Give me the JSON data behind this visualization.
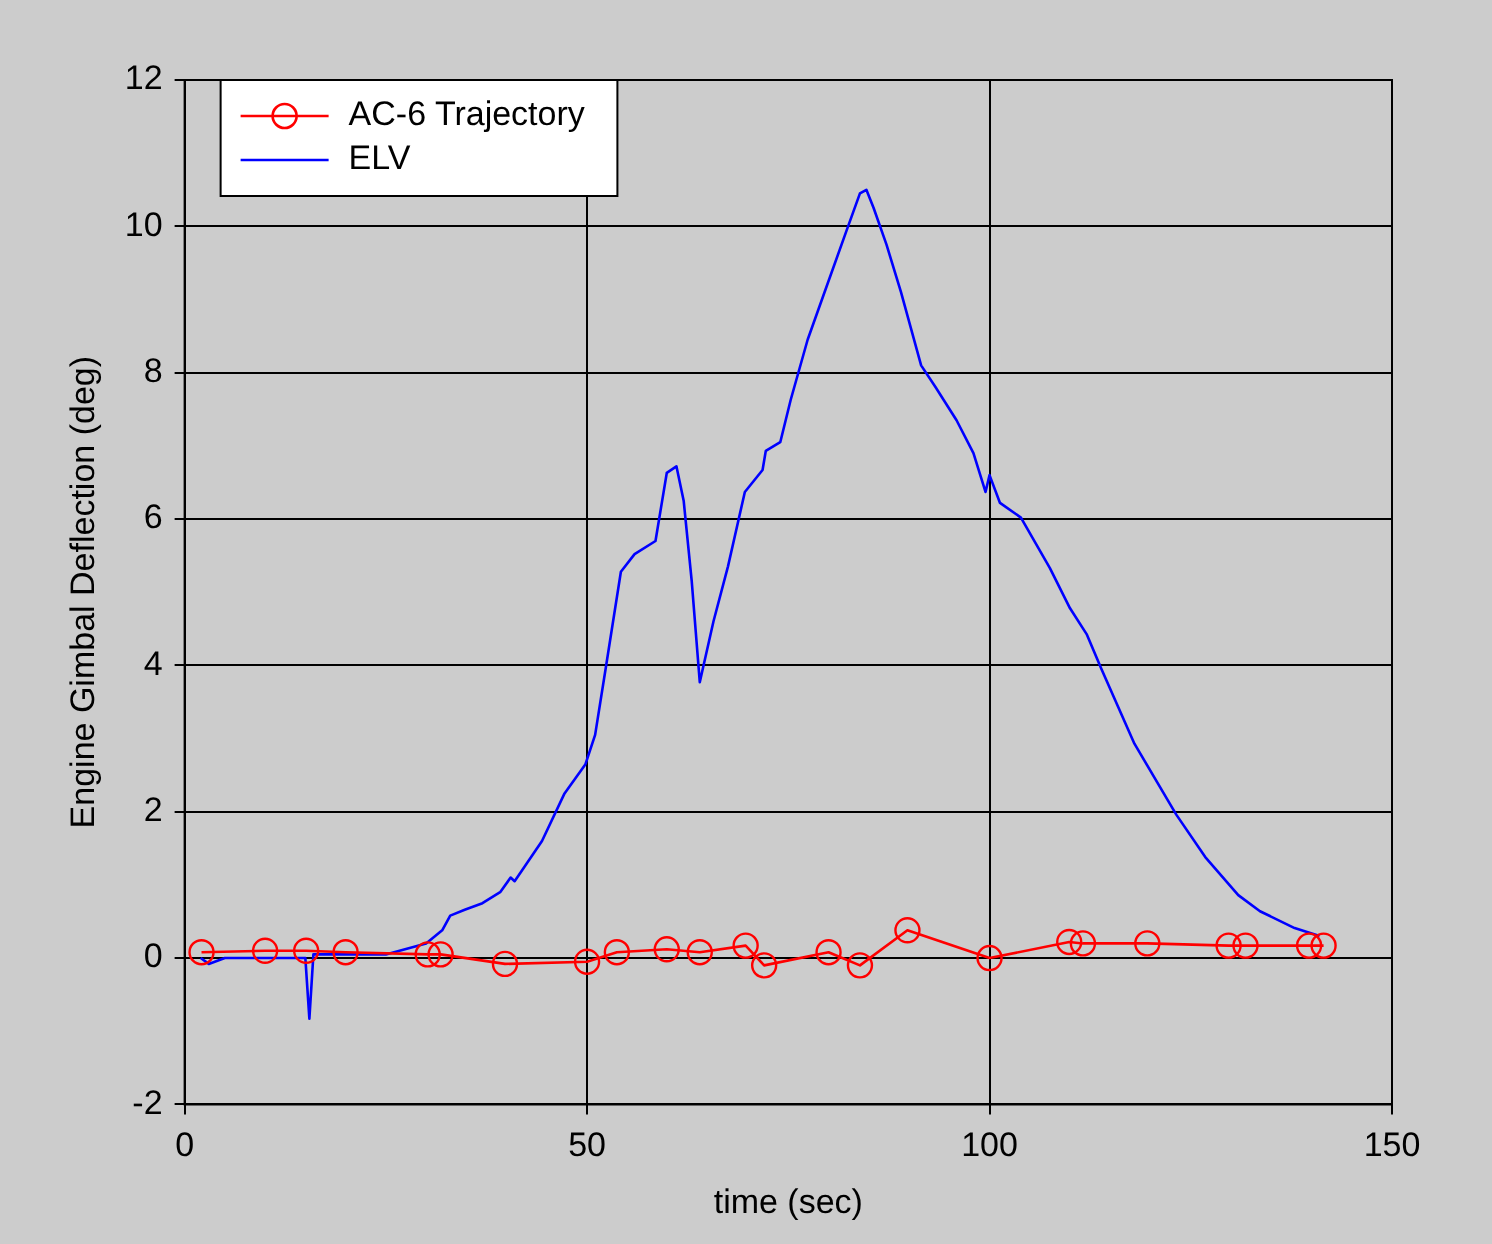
{
  "chart_data": {
    "type": "line",
    "xlabel": "time (sec)",
    "ylabel": "Engine Gimbal Deflection (deg)",
    "xlim": [
      0,
      150
    ],
    "xticks": [
      0,
      50,
      100,
      150
    ],
    "ylim": [
      -2,
      12
    ],
    "yticks": [
      -2,
      0,
      2,
      4,
      6,
      8,
      10,
      12
    ],
    "grid": true,
    "legend": "top left",
    "line_style": "solid",
    "series": [
      {
        "name": "AC-6 Trajectory",
        "color": "#ff0000",
        "marker": "circle",
        "x": [
          2.1,
          10,
          15.1,
          20,
          30.2,
          31.8,
          39.8,
          50,
          53.7,
          59.9,
          64,
          69.7,
          72,
          80,
          83.9,
          89.8,
          100,
          109.9,
          111.6,
          119.6,
          129.7,
          131.8,
          139.7,
          141.5
        ],
        "values": [
          0.08,
          0.1,
          0.1,
          0.08,
          0.05,
          0.05,
          -0.08,
          -0.05,
          0.08,
          0.12,
          0.08,
          0.17,
          -0.1,
          0.08,
          -0.1,
          0.38,
          0,
          0.22,
          0.2,
          0.2,
          0.17,
          0.17,
          0.17,
          0.17
        ]
      },
      {
        "name": "ELV",
        "color": "#0000ff",
        "marker": "none",
        "x": [
          2,
          3,
          5,
          10,
          15,
          15.5,
          16,
          17,
          20,
          25,
          30,
          32,
          33,
          34.8,
          37,
          39.2,
          40.5,
          41,
          44.4,
          47.2,
          49.8,
          51,
          52.3,
          54.2,
          55.9,
          58.5,
          59.9,
          61.1,
          62,
          63,
          64,
          65.7,
          67.5,
          69.6,
          71.8,
          72.2,
          74,
          75.3,
          77.4,
          79.5,
          82.1,
          83.9,
          84.7,
          85.6,
          87.2,
          89,
          91.5,
          93.3,
          95.9,
          98,
          99.5,
          100,
          101.3,
          103.9,
          107.5,
          110,
          112.1,
          113.9,
          118,
          123.2,
          126.8,
          130.9,
          133.6,
          137.9,
          141
        ],
        "values": [
          0,
          -0.08,
          0,
          0,
          0,
          -0.83,
          0.05,
          0.05,
          0.05,
          0.05,
          0.2,
          0.38,
          0.58,
          0.66,
          0.75,
          0.9,
          1.1,
          1.05,
          1.6,
          2.25,
          2.65,
          3.05,
          3.95,
          5.28,
          5.52,
          5.7,
          6.63,
          6.72,
          6.25,
          5.15,
          3.77,
          4.6,
          5.35,
          6.37,
          6.67,
          6.93,
          7.05,
          7.63,
          8.45,
          9.1,
          9.9,
          10.45,
          10.5,
          10.25,
          9.75,
          9.1,
          8.1,
          7.8,
          7.35,
          6.9,
          6.37,
          6.6,
          6.22,
          6.02,
          5.33,
          4.78,
          4.42,
          3.95,
          2.93,
          1.96,
          1.38,
          0.86,
          0.64,
          0.41,
          0.3
        ]
      }
    ]
  }
}
